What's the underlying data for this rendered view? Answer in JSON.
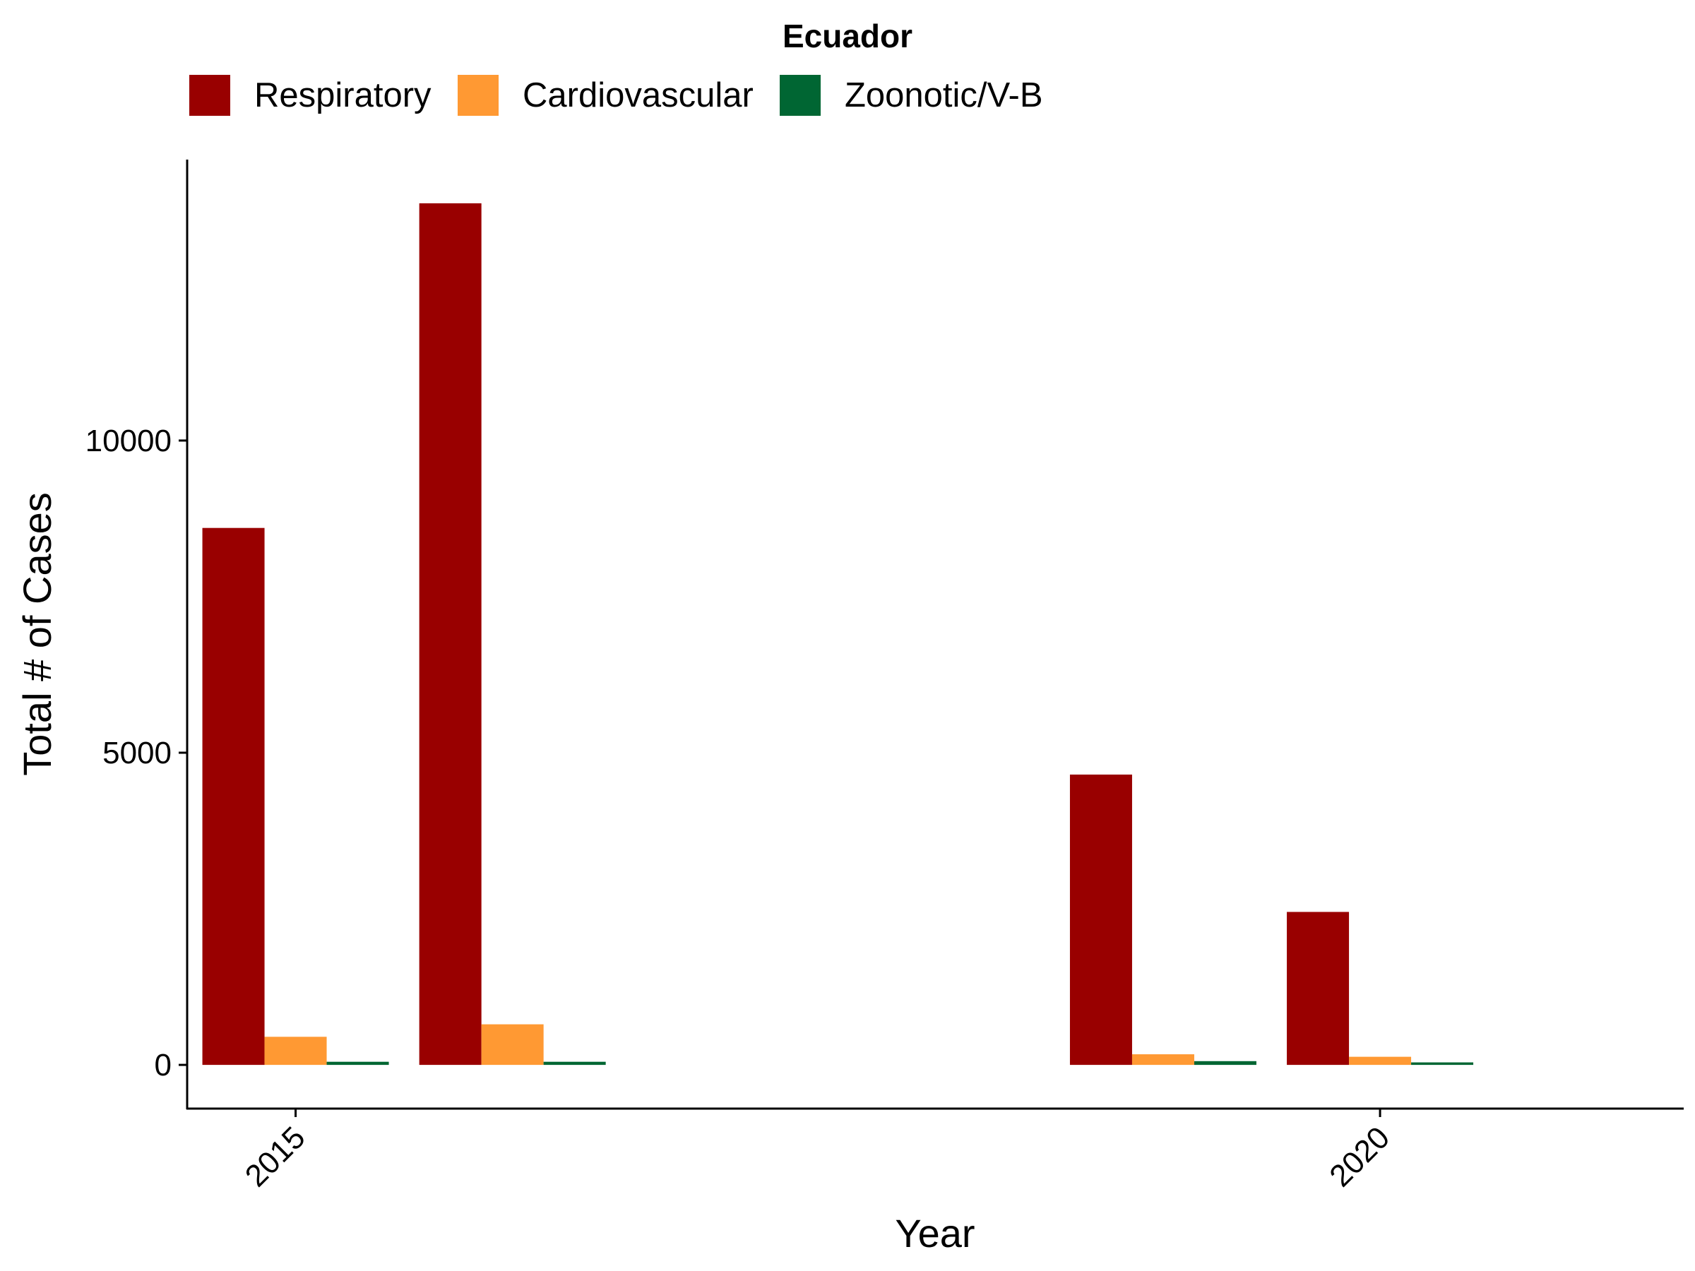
{
  "legend": {
    "title": "Ecuador",
    "items": [
      {
        "label": "Respiratory",
        "color": "#990000"
      },
      {
        "label": "Cardiovascular",
        "color": "#FF9933"
      },
      {
        "label": "Zoonotic/V-B",
        "color": "#006633"
      }
    ]
  },
  "chart_data": {
    "type": "bar",
    "title": "Ecuador",
    "xlabel": "Year",
    "ylabel": "Total # of Cases",
    "x": [
      2015,
      2016,
      2019,
      2020
    ],
    "x_ticks": [
      "2015",
      "2020"
    ],
    "xlim": [
      2014.5,
      2021.4
    ],
    "y_ticks": [
      "0",
      "5000",
      "10000"
    ],
    "ylim": [
      -700,
      14500
    ],
    "grid": false,
    "legend_position": "top",
    "series": [
      {
        "name": "Respiratory",
        "color": "#990000",
        "values": [
          8600,
          13800,
          4650,
          2450
        ]
      },
      {
        "name": "Cardiovascular",
        "color": "#FF9933",
        "values": [
          450,
          650,
          170,
          130
        ]
      },
      {
        "name": "Zoonotic/V-B",
        "color": "#006633",
        "values": [
          50,
          50,
          60,
          40
        ]
      }
    ]
  }
}
